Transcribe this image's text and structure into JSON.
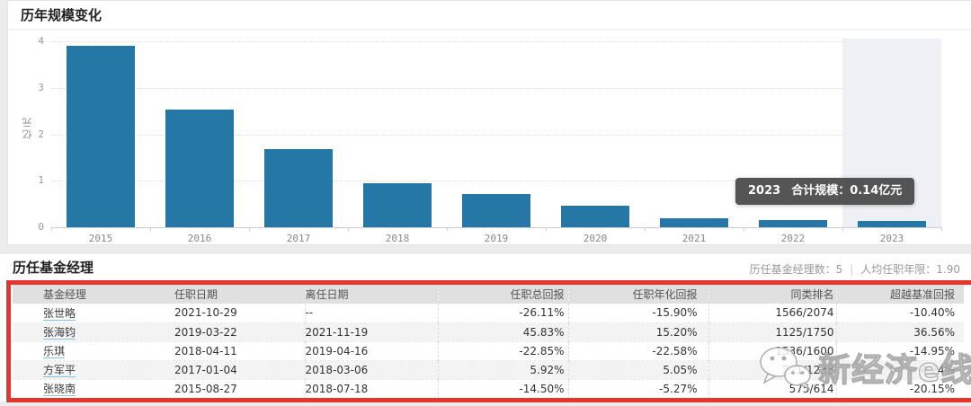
{
  "scale_section": {
    "title": "历年规模变化"
  },
  "chart_data": {
    "type": "bar",
    "title": "历年规模变化",
    "categories": [
      "2015",
      "2016",
      "2017",
      "2018",
      "2019",
      "2020",
      "2021",
      "2022",
      "2023"
    ],
    "values": [
      3.9,
      2.53,
      1.69,
      0.95,
      0.72,
      0.46,
      0.2,
      0.15,
      0.14
    ],
    "xlabel": "",
    "ylabel": "亿元",
    "ylim": [
      0,
      4
    ],
    "yticks": [
      0,
      1,
      2,
      3,
      4
    ],
    "grid": true,
    "legend": "none",
    "bar_color": "#2577a6",
    "highlight_category": "2023",
    "tooltip": {
      "year": "2023",
      "text": "合计规模：0.14亿元"
    }
  },
  "managers_section": {
    "title": "历任基金经理",
    "stats": [
      {
        "label": "历任基金经理数：",
        "value": "5"
      },
      {
        "label": "人均任职年限：",
        "value": "1.90"
      }
    ],
    "stats_separator": "|"
  },
  "table": {
    "headers": [
      "基金经理",
      "任职日期",
      "离任日期",
      "任职总回报",
      "任职年化回报",
      "同类排名",
      "超越基准回报"
    ],
    "rows": [
      {
        "name": "张世略",
        "start": "2021-10-29",
        "end": "--",
        "total_return": "-26.11%",
        "annual_return": "-15.90%",
        "rank": "1566/2074",
        "excess_return": "-10.40%"
      },
      {
        "name": "张海钧",
        "start": "2019-03-22",
        "end": "2021-11-19",
        "total_return": "45.83%",
        "annual_return": "15.20%",
        "rank": "1125/1750",
        "excess_return": "36.56%"
      },
      {
        "name": "乐琪",
        "start": "2018-04-11",
        "end": "2019-04-16",
        "total_return": "-22.85%",
        "annual_return": "-22.58%",
        "rank": "1536/1600",
        "excess_return": "-14.95%"
      },
      {
        "name": "方军平",
        "start": "2017-01-04",
        "end": "2018-03-06",
        "total_return": "5.92%",
        "annual_return": "5.05%",
        "rank": "271/1238",
        "excess_return": "4.24%"
      },
      {
        "name": "张晓南",
        "start": "2015-08-27",
        "end": "2018-07-18",
        "total_return": "-14.50%",
        "annual_return": "-5.27%",
        "rank": "575/614",
        "excess_return": "-20.15%"
      }
    ]
  },
  "watermark": {
    "text": "新经济e线",
    "logo": "wechat-icon"
  },
  "colors": {
    "bar": "#2577a6",
    "red_frame": "#e5352d",
    "tooltip_bg": "#464646",
    "link_underline": "#86c3dd",
    "header_bg": "#e0e0e0"
  }
}
